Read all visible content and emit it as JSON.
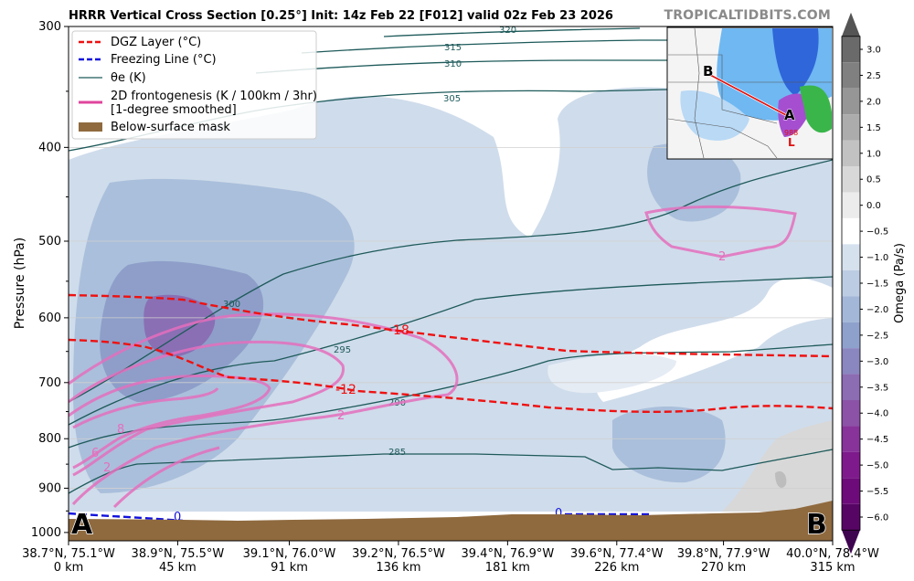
{
  "header": {
    "title": "HRRR Vertical Cross Section [0.25°] Init: 14z Feb 22 [F012] valid 02z Feb 23 2026",
    "brand": "TROPICALTIDBITS.COM"
  },
  "chart_data": {
    "type": "contour",
    "ylabel": "Pressure (hPa)",
    "y_scale": "log",
    "ylim": [
      1020,
      300
    ],
    "y_ticks": [
      300,
      400,
      500,
      600,
      700,
      800,
      900,
      1000
    ],
    "x_tick_coords": [
      "38.7°N, 75.1°W",
      "38.9°N, 75.5°W",
      "39.1°N, 76.0°W",
      "39.2°N, 76.5°W",
      "39.4°N, 76.9°W",
      "39.6°N, 77.4°W",
      "39.8°N, 77.9°W",
      "40.0°N, 78.4°W"
    ],
    "x_tick_dist": [
      "0 km",
      "45 km",
      "91 km",
      "136 km",
      "181 km",
      "226 km",
      "270 km",
      "315 km"
    ],
    "x_km": [
      0,
      45,
      91,
      136,
      181,
      226,
      270,
      315
    ],
    "end_labels": {
      "left": "A",
      "right": "B"
    },
    "legend": [
      {
        "label": "DGZ Layer (°C)",
        "color": "#ee1111",
        "style": "dashed"
      },
      {
        "label": "Freezing Line (°C)",
        "color": "#1111dd",
        "style": "dashed"
      },
      {
        "label": "θe (K)",
        "color": "#1e5a5a",
        "style": "solid"
      },
      {
        "label": "2D frontogenesis (K / 100km / 3hr)\n[1-degree smoothed]",
        "color": "#e0449c",
        "style": "solid"
      },
      {
        "label": "Below-surface mask",
        "color": "#8f6a3f",
        "style": "patch"
      }
    ],
    "colorbar": {
      "label": "Omega (Pa/s)",
      "ticks": [
        "3.0",
        "2.5",
        "2.0",
        "1.5",
        "1.0",
        "0.5",
        "0.0",
        "−0.5",
        "−1.0",
        "−1.5",
        "−2.0",
        "−2.5",
        "−3.0",
        "−3.5",
        "−4.0",
        "−4.5",
        "−5.0",
        "−5.5",
        "−6.0"
      ]
    },
    "series": [
      {
        "name": "θe (K)",
        "contour_levels": [
          285,
          290,
          295,
          300,
          305,
          310,
          315,
          320
        ]
      },
      {
        "name": "DGZ Layer (°C)",
        "contour_levels": [
          -18,
          -12
        ]
      },
      {
        "name": "Freezing Line (°C)",
        "contour_levels": [
          0
        ]
      },
      {
        "name": "2D frontogenesis (K / 100km / 3hr)",
        "contour_levels": [
          2,
          6,
          8
        ]
      }
    ],
    "contour_labels": {
      "theta_e": [
        "320",
        "315",
        "310",
        "305",
        "300",
        "295",
        "290",
        "285"
      ],
      "dgz": [
        "-18",
        "-12"
      ],
      "freezing": [
        "0",
        "0"
      ],
      "fronto": [
        "2",
        "2",
        "6",
        "8",
        "2"
      ]
    },
    "inset_map": {
      "labels": [
        "B",
        "A",
        "L",
        "988"
      ]
    }
  }
}
